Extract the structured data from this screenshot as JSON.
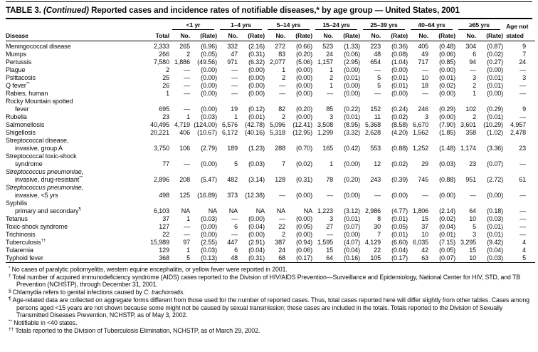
{
  "title": {
    "label": "TABLE 3.",
    "continued": "(Continued)",
    "text": "Reported cases and incidence rates of notifiable diseases,* by age group — United States, 2001"
  },
  "header": {
    "disease": "Disease",
    "total": "Total",
    "no": "No.",
    "rate": "(Rate)",
    "age_groups": [
      "<1 yr",
      "1–4 yrs",
      "5–14 yrs",
      "15–24 yrs",
      "25–39 yrs",
      "40–64 yrs",
      "≥65 yrs"
    ],
    "age_not_stated_line1": "Age not",
    "age_not_stated_line2": "stated"
  },
  "table": {
    "rows": [
      {
        "name_lines": [
          {
            "text": "Meningococcal disease"
          }
        ],
        "total": "2,333",
        "cells": [
          "265",
          "(6.96)",
          "332",
          "(2.16)",
          "272",
          "(0.66)",
          "523",
          "(1.33)",
          "223",
          "(0.36)",
          "405",
          "(0.48)",
          "304",
          "(0.87)"
        ],
        "ans": "9"
      },
      {
        "name_lines": [
          {
            "text": "Mumps"
          }
        ],
        "total": "266",
        "cells": [
          "2",
          "(0.05)",
          "47",
          "(0.31)",
          "83",
          "(0.20)",
          "24",
          "(0.06)",
          "48",
          "(0.08)",
          "49",
          "(0.06)",
          "6",
          "(0.02)"
        ],
        "ans": "7"
      },
      {
        "name_lines": [
          {
            "text": "Pertussis"
          }
        ],
        "total": "7,580",
        "cells": [
          "1,886",
          "(49.56)",
          "971",
          "(6.32)",
          "2,077",
          "(5.06)",
          "1,157",
          "(2.95)",
          "654",
          "(1.04)",
          "717",
          "(0.85)",
          "94",
          "(0.27)"
        ],
        "ans": "24"
      },
      {
        "name_lines": [
          {
            "text": "Plague"
          }
        ],
        "total": "2",
        "cells": [
          "—",
          "(0.00)",
          "—",
          "(0.00)",
          "1",
          "(0.00)",
          "1",
          "(0.00)",
          "—",
          "(0.00)",
          "—",
          "(0.00)",
          "—",
          "(0.00)"
        ],
        "ans": "—"
      },
      {
        "name_lines": [
          {
            "text": "Psittacosis"
          }
        ],
        "total": "25",
        "cells": [
          "—",
          "(0.00)",
          "—",
          "(0.00)",
          "2",
          "(0.00)",
          "2",
          "(0.01)",
          "5",
          "(0.01)",
          "10",
          "(0.01)",
          "3",
          "(0.01)"
        ],
        "ans": "3"
      },
      {
        "name_lines": [
          {
            "text": "Q fever",
            "sup": "**"
          }
        ],
        "total": "26",
        "cells": [
          "—",
          "(0.00)",
          "—",
          "(0.00)",
          "—",
          "(0.00)",
          "1",
          "(0.00)",
          "5",
          "(0.01)",
          "18",
          "(0.02)",
          "2",
          "(0.01)"
        ],
        "ans": "—"
      },
      {
        "name_lines": [
          {
            "text": "Rabies, human"
          }
        ],
        "total": "1",
        "cells": [
          "—",
          "(0.00)",
          "—",
          "(0.00)",
          "—",
          "(0.00)",
          "—",
          "(0.00)",
          "—",
          "(0.00)",
          "—",
          "(0.00)",
          "1",
          "(0.00)"
        ],
        "ans": "—"
      },
      {
        "name_lines": [
          {
            "text": "Rocky Mountain spotted"
          },
          {
            "text": "fever",
            "indent": true
          }
        ],
        "total": "695",
        "cells": [
          "—",
          "(0.00)",
          "19",
          "(0.12)",
          "82",
          "(0.20)",
          "85",
          "(0.22)",
          "152",
          "(0.24)",
          "246",
          "(0.29)",
          "102",
          "(0.29)"
        ],
        "ans": "9"
      },
      {
        "name_lines": [
          {
            "text": "Rubella"
          }
        ],
        "total": "23",
        "cells": [
          "1",
          "(0.03)",
          "1",
          "(0.01)",
          "2",
          "(0.00)",
          "3",
          "(0.01)",
          "11",
          "(0.02)",
          "3",
          "(0.00)",
          "2",
          "(0.01)"
        ],
        "ans": "—"
      },
      {
        "name_lines": [
          {
            "text": "Salmonellosis"
          }
        ],
        "total": "40,495",
        "cells": [
          "4,719",
          "(124.00)",
          "6,576",
          "(42.78)",
          "5,096",
          "(12.41)",
          "3,508",
          "(8.95)",
          "5,368",
          "(8.58)",
          "6,670",
          "(7.90)",
          "3,601",
          "(10.29)"
        ],
        "ans": "4,957"
      },
      {
        "name_lines": [
          {
            "text": "Shigellosis"
          }
        ],
        "total": "20,221",
        "cells": [
          "406",
          "(10.67)",
          "6,172",
          "(40.16)",
          "5,318",
          "(12.95)",
          "1,299",
          "(3.32)",
          "2,628",
          "(4.20)",
          "1,562",
          "(1.85)",
          "358",
          "(1.02)"
        ],
        "ans": "2,478"
      },
      {
        "name_lines": [
          {
            "text": "Streptococcal disease,"
          },
          {
            "text": "invasive, group A",
            "indent": true
          }
        ],
        "total": "3,750",
        "cells": [
          "106",
          "(2.79)",
          "189",
          "(1.23)",
          "288",
          "(0.70)",
          "165",
          "(0.42)",
          "553",
          "(0.88)",
          "1,252",
          "(1.48)",
          "1,174",
          "(3.36)"
        ],
        "ans": "23"
      },
      {
        "name_lines": [
          {
            "text": "Streptococcal toxic-shock"
          },
          {
            "text": "syndrome",
            "indent": true
          }
        ],
        "total": "77",
        "cells": [
          "—",
          "(0.00)",
          "5",
          "(0.03)",
          "7",
          "(0.02)",
          "1",
          "(0.00)",
          "12",
          "(0.02)",
          "29",
          "(0.03)",
          "23",
          "(0.07)"
        ],
        "ans": "—"
      },
      {
        "name_lines": [
          {
            "text": "Streptococcus pneumoniae,",
            "italic": true
          },
          {
            "text": "invasive, drug-resistant",
            "indent": true,
            "sup": "**"
          }
        ],
        "total": "2,896",
        "cells": [
          "208",
          "(5.47)",
          "482",
          "(3.14)",
          "128",
          "(0.31)",
          "78",
          "(0.20)",
          "243",
          "(0.39)",
          "745",
          "(0.88)",
          "951",
          "(2.72)"
        ],
        "ans": "61"
      },
      {
        "name_lines": [
          {
            "text": "Streptococcus pneumoniae,",
            "italic": true
          },
          {
            "text": "invasive, <5 yrs",
            "indent": true
          }
        ],
        "total": "498",
        "cells": [
          "125",
          "(16.89)",
          "373",
          "(12.38)",
          "—",
          "(0.00)",
          "—",
          "(0.00)",
          "—",
          "(0.00)",
          "—",
          "(0.00)",
          "—",
          "(0.00)"
        ],
        "ans": "—"
      },
      {
        "name_lines": [
          {
            "text": "Syphilis"
          },
          {
            "text": "primary and secondary",
            "indent": true,
            "sup": "¶"
          }
        ],
        "total": "6,103",
        "cells": [
          "NA",
          "NA",
          "NA",
          "NA",
          "NA",
          "NA",
          "1,223",
          "(3.12)",
          "2,986",
          "(4.77)",
          "1,806",
          "(2.14)",
          "64",
          "(0.18)"
        ],
        "ans": "—"
      },
      {
        "name_lines": [
          {
            "text": "Tetanus"
          }
        ],
        "total": "37",
        "cells": [
          "1",
          "(0.03)",
          "—",
          "(0.00)",
          "—",
          "(0.00)",
          "3",
          "(0.01)",
          "8",
          "(0.01)",
          "15",
          "(0.02)",
          "10",
          "(0.03)"
        ],
        "ans": "—"
      },
      {
        "name_lines": [
          {
            "text": "Toxic-shock syndrome"
          }
        ],
        "total": "127",
        "cells": [
          "—",
          "(0.00)",
          "6",
          "(0.04)",
          "22",
          "(0.05)",
          "27",
          "(0.07)",
          "30",
          "(0.05)",
          "37",
          "(0.04)",
          "5",
          "(0.01)"
        ],
        "ans": "—"
      },
      {
        "name_lines": [
          {
            "text": "Trichinosis"
          }
        ],
        "total": "22",
        "cells": [
          "—",
          "(0.00)",
          "—",
          "(0.00)",
          "2",
          "(0.00)",
          "—",
          "(0.00)",
          "7",
          "(0.01)",
          "10",
          "(0.01)",
          "3",
          "(0.01)"
        ],
        "ans": "—"
      },
      {
        "name_lines": [
          {
            "text": "Tuberculosis",
            "sup": "††"
          }
        ],
        "total": "15,989",
        "cells": [
          "97",
          "(2.55)",
          "447",
          "(2.91)",
          "387",
          "(0.94)",
          "1,595",
          "(4.07)",
          "4,129",
          "(6.60)",
          "6,035",
          "(7.15)",
          "3,295",
          "(9.42)"
        ],
        "ans": "4"
      },
      {
        "name_lines": [
          {
            "text": "Tularemia"
          }
        ],
        "total": "129",
        "cells": [
          "1",
          "(0.03)",
          "6",
          "(0.04)",
          "24",
          "(0.06)",
          "15",
          "(0.04)",
          "22",
          "(0.04)",
          "42",
          "(0.05)",
          "15",
          "(0.04)"
        ],
        "ans": "4"
      },
      {
        "name_lines": [
          {
            "text": "Typhoid fever"
          }
        ],
        "total": "368",
        "cells": [
          "5",
          "(0.13)",
          "48",
          "(0.31)",
          "68",
          "(0.17)",
          "64",
          "(0.16)",
          "105",
          "(0.17)",
          "63",
          "(0.07)",
          "10",
          "(0.03)"
        ],
        "ans": "5"
      }
    ]
  },
  "footnotes": [
    {
      "marker": "*",
      "parts": [
        {
          "text": "No cases of paralytic poliomyelitis, western equine encephalitis, or yellow fever were reported in 2001."
        }
      ]
    },
    {
      "marker": "†",
      "parts": [
        {
          "text": "Total number of acquired immunodeficiency syndrome (AIDS) cases reported to the Division of HIV/AIDS Prevention—Surveillance and Epidemiology, National Center for HIV, STD, and TB Prevention (NCHSTP), through December 31, 2001."
        }
      ]
    },
    {
      "marker": "§",
      "parts": [
        {
          "text": "Chlamydia refers to genital infections caused by "
        },
        {
          "text": "C. trachomatis",
          "italic": true
        },
        {
          "text": "."
        }
      ]
    },
    {
      "marker": "¶",
      "parts": [
        {
          "text": "Age-related data are collected on aggregate forms different from those used for the number of reported cases. Thus, total cases reported here will differ slightly from other tables. Cases among persons aged <15 years are not shown because some might not be caused by sexual transmission; these cases are included in the totals. Totals reported to the Division of Sexually Transmitted Diseases Prevention, NCHSTP, as of May 3, 2002."
        }
      ]
    },
    {
      "marker": "**",
      "parts": [
        {
          "text": "Notifiable in <40 states."
        }
      ]
    },
    {
      "marker": "††",
      "parts": [
        {
          "text": "Totals reported to the Division of Tuberculosis Elimination, NCHSTP, as of March 29, 2002."
        }
      ]
    }
  ]
}
